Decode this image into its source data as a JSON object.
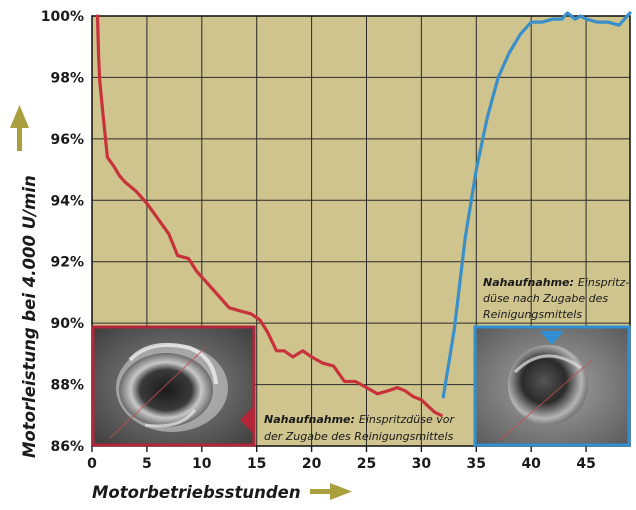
{
  "chart_data": {
    "type": "line",
    "xlabel": "Motorbetriebsstunden",
    "ylabel": "Motorleistung bei 4.000 U/min",
    "xlim": [
      0,
      49
    ],
    "ylim": [
      86,
      100
    ],
    "x_ticks": [
      "0",
      "5",
      "10",
      "15",
      "20",
      "25",
      "30",
      "35",
      "40",
      "45"
    ],
    "y_ticks": [
      "86%",
      "88%",
      "90%",
      "92%",
      "94%",
      "96%",
      "98%",
      "100%"
    ],
    "grid": true,
    "background": "#cfc38e",
    "series": [
      {
        "color": "#c8323a",
        "points": [
          [
            0.5,
            100
          ],
          [
            0.6,
            98.7
          ],
          [
            0.7,
            97.9
          ],
          [
            1.0,
            96.8
          ],
          [
            1.4,
            95.4
          ],
          [
            2.0,
            95.1
          ],
          [
            2.5,
            94.8
          ],
          [
            3.0,
            94.6
          ],
          [
            4.0,
            94.3
          ],
          [
            5.0,
            93.9
          ],
          [
            6.0,
            93.4
          ],
          [
            7.0,
            92.9
          ],
          [
            7.8,
            92.2
          ],
          [
            8.8,
            92.1
          ],
          [
            9.5,
            91.7
          ],
          [
            10.5,
            91.3
          ],
          [
            11.5,
            90.9
          ],
          [
            12.5,
            90.5
          ],
          [
            13.5,
            90.4
          ],
          [
            14.5,
            90.3
          ],
          [
            15.3,
            90.1
          ],
          [
            16.0,
            89.7
          ],
          [
            16.8,
            89.1
          ],
          [
            17.5,
            89.1
          ],
          [
            18.3,
            88.9
          ],
          [
            19.2,
            89.1
          ],
          [
            20.0,
            88.9
          ],
          [
            21.0,
            88.7
          ],
          [
            22.0,
            88.6
          ],
          [
            23.0,
            88.1
          ],
          [
            24.0,
            88.1
          ],
          [
            25.0,
            87.9
          ],
          [
            26.0,
            87.7
          ],
          [
            27.0,
            87.8
          ],
          [
            27.8,
            87.9
          ],
          [
            28.5,
            87.8
          ],
          [
            29.3,
            87.6
          ],
          [
            30.0,
            87.5
          ],
          [
            30.6,
            87.3
          ],
          [
            31.2,
            87.1
          ],
          [
            31.8,
            87.0
          ]
        ]
      },
      {
        "color": "#3a8fc8",
        "points": [
          [
            32.0,
            87.6
          ],
          [
            33.0,
            89.8
          ],
          [
            34.0,
            92.8
          ],
          [
            35.0,
            95.0
          ],
          [
            36.0,
            96.7
          ],
          [
            37.0,
            98.0
          ],
          [
            38.0,
            98.8
          ],
          [
            39.0,
            99.4
          ],
          [
            40.0,
            99.8
          ],
          [
            41.0,
            99.8
          ],
          [
            42.0,
            99.9
          ],
          [
            42.8,
            99.9
          ],
          [
            43.3,
            100.1
          ],
          [
            44.0,
            99.9
          ],
          [
            44.5,
            100.0
          ],
          [
            45.0,
            99.9
          ],
          [
            46.0,
            99.8
          ],
          [
            47.0,
            99.8
          ],
          [
            48.0,
            99.7
          ],
          [
            49.0,
            100.1
          ]
        ]
      }
    ],
    "annotations": [
      {
        "bold": "Nahaufnahme:",
        "lines": [
          "Einspritzdüse vor",
          "der Zugabe des Reinigungsmittels"
        ],
        "frame_color": "#b3263a"
      },
      {
        "bold": "Nahaufnahme:",
        "lines": [
          "Einspritz-",
          "düse nach Zugabe des",
          "Reinigungsmittels"
        ],
        "frame_color": "#2f8fd0"
      }
    ]
  }
}
